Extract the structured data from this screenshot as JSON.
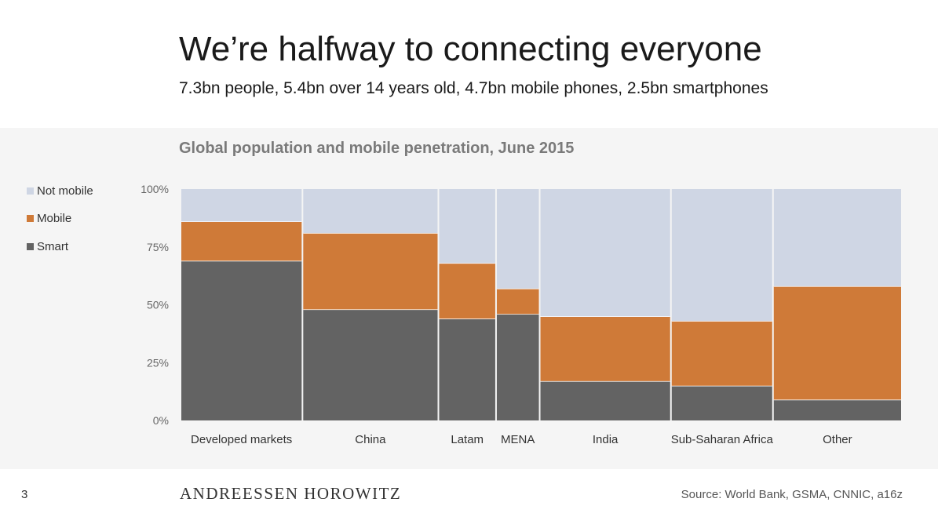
{
  "slide": {
    "title": "We’re halfway to connecting everyone",
    "subtitle": "7.3bn people, 5.4bn over 14 years old, 4.7bn mobile phones, 2.5bn smartphones",
    "page_number": "3",
    "brand": "ANDREESSEN HOROWITZ",
    "source": "Source: World Bank, GSMA, CNNIC, a16z"
  },
  "colors": {
    "not_mobile": "#cfd6e4",
    "mobile": "#cf7a38",
    "smart": "#636363"
  },
  "chart_data": {
    "type": "mekko",
    "title": "Global population and mobile penetration, June 2015",
    "ylim": [
      0,
      100
    ],
    "yticks": [
      "100%",
      "75%",
      "50%",
      "25%",
      "0%"
    ],
    "legend_position": "left",
    "legend": [
      "Not mobile",
      "Mobile",
      "Smart"
    ],
    "categories": [
      "Developed markets",
      "China",
      "Latam",
      "MENA",
      "India",
      "Sub-Saharan Africa",
      "Other"
    ],
    "widths": [
      1.03,
      1.15,
      0.48,
      0.36,
      1.11,
      0.86,
      1.09
    ],
    "series": [
      {
        "name": "Smart",
        "values": [
          69,
          48,
          44,
          46,
          17,
          15,
          9
        ]
      },
      {
        "name": "Mobile",
        "values": [
          17,
          33,
          24,
          11,
          28,
          28,
          49
        ]
      },
      {
        "name": "Not mobile",
        "values": [
          14,
          19,
          32,
          43,
          55,
          57,
          42
        ]
      }
    ]
  }
}
